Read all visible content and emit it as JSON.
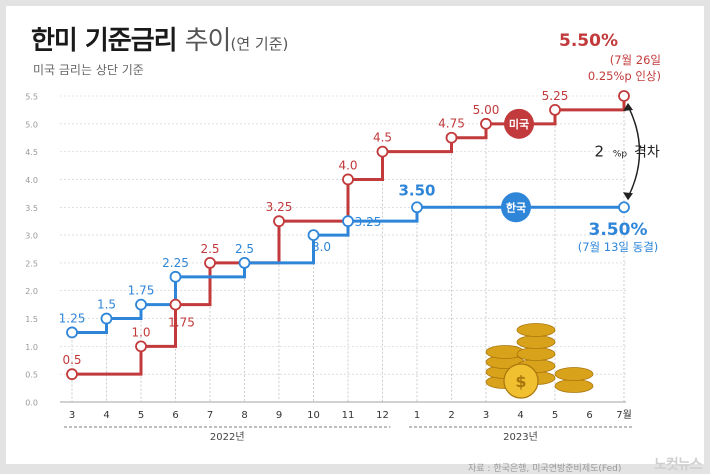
{
  "title": {
    "main": "한미 기준금리",
    "trend": "추이",
    "unit": "(연 기준)"
  },
  "subtitle": "미국 금리는 상단 기준",
  "source": "자료 : 한국은행, 미국연방준비제도(Fed)",
  "watermark": "노컷뉴스",
  "colors": {
    "us": "#c23a3b",
    "kr": "#2f86d9",
    "grid": "#cccccc",
    "axis": "#888888"
  },
  "chart_data": {
    "type": "line",
    "step": true,
    "ylim": [
      0,
      5.5
    ],
    "y_ticks": [
      "0.0",
      "0.5",
      "1.0",
      "1.5",
      "2.0",
      "2.5",
      "3.0",
      "3.5",
      "4.0",
      "4.5",
      "5.0",
      "5.5"
    ],
    "x_ticks": [
      "3",
      "4",
      "5",
      "6",
      "7",
      "8",
      "9",
      "10",
      "11",
      "12",
      "1",
      "2",
      "3",
      "4",
      "5",
      "6",
      "7월"
    ],
    "year_groups": [
      {
        "label": "2022년",
        "from": 0,
        "to": 9
      },
      {
        "label": "2023년",
        "from": 10,
        "to": 16
      }
    ],
    "series": [
      {
        "name": "미국",
        "points": [
          {
            "x": 0,
            "y": 0.5,
            "label": "0.5"
          },
          {
            "x": 2,
            "y": 1.0,
            "label": "1.0"
          },
          {
            "x": 3,
            "y": 1.75,
            "label": "1.75"
          },
          {
            "x": 4,
            "y": 2.5,
            "label": "2.5"
          },
          {
            "x": 6,
            "y": 3.25,
            "label": "3.25"
          },
          {
            "x": 8,
            "y": 4.0,
            "label": "4.0"
          },
          {
            "x": 9,
            "y": 4.5,
            "label": "4.5"
          },
          {
            "x": 11,
            "y": 4.75,
            "label": "4.75"
          },
          {
            "x": 12,
            "y": 5.0,
            "label": "5.00"
          },
          {
            "x": 14,
            "y": 5.25,
            "label": "5.25"
          },
          {
            "x": 16,
            "y": 5.5,
            "label": ""
          }
        ]
      },
      {
        "name": "한국",
        "points": [
          {
            "x": 0,
            "y": 1.25,
            "label": "1.25"
          },
          {
            "x": 1,
            "y": 1.5,
            "label": "1.5"
          },
          {
            "x": 2,
            "y": 1.75,
            "label": "1.75"
          },
          {
            "x": 3,
            "y": 2.25,
            "label": "2.25"
          },
          {
            "x": 5,
            "y": 2.5,
            "label": "2.5"
          },
          {
            "x": 7,
            "y": 3.0,
            "label": "3.0"
          },
          {
            "x": 8,
            "y": 3.25,
            "label": "3.25"
          },
          {
            "x": 10,
            "y": 3.5,
            "label": "3.50"
          },
          {
            "x": 16,
            "y": 3.5,
            "label": ""
          }
        ]
      }
    ],
    "annotations": {
      "us_final": {
        "value": "5.50%",
        "date": "(7월 26일",
        "note": "0.25%p 인상)"
      },
      "kr_final": {
        "value": "3.50%",
        "note": "(7월 13일 동결)"
      },
      "gap": {
        "num": "2",
        "unit": "%p",
        "word": "격차"
      }
    }
  }
}
